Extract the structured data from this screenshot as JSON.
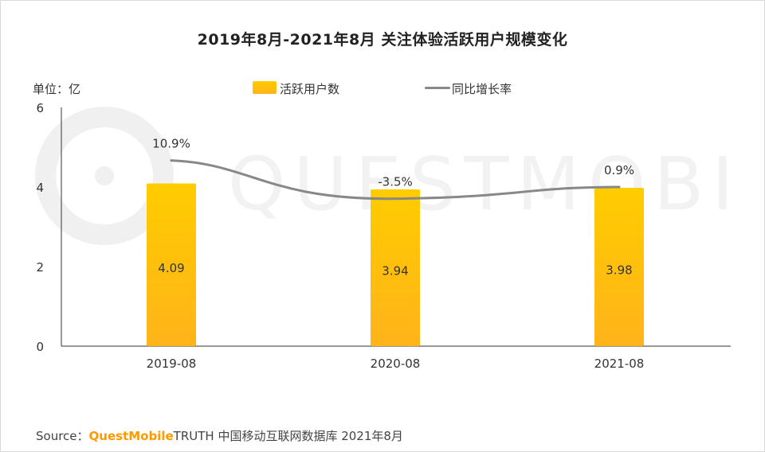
{
  "title": "2019年8月-2021年8月 关注体验活跃用户规模变化",
  "unit_label": "单位：亿",
  "watermark": "QUESTMOBILE",
  "source": {
    "prefix": "Source：",
    "brand": "QuestMobile",
    "suffix": "TRUTH 中国移动互联网数据库 2021年8月"
  },
  "colors": {
    "bar_top": "#ffcc00",
    "bar_bottom": "#ffb31a",
    "line": "#888888",
    "axis": "#333333",
    "watermark": "#f2f2f2"
  },
  "chart_data": {
    "type": "bar",
    "title": "2019年8月-2021年8月 关注体验活跃用户规模变化",
    "categories": [
      "2019-08",
      "2020-08",
      "2021-08"
    ],
    "series": [
      {
        "name": "活跃用户数",
        "type": "bar",
        "axis": "left",
        "values": [
          4.09,
          3.94,
          3.98
        ],
        "labels": [
          "4.09",
          "3.94",
          "3.98"
        ]
      },
      {
        "name": "同比增长率",
        "type": "line",
        "axis": "right-hidden",
        "values": [
          10.9,
          -3.5,
          0.9
        ],
        "labels": [
          "10.9%",
          "-3.5%",
          "0.9%"
        ]
      }
    ],
    "ylim": [
      0,
      6
    ],
    "yticks": [
      0,
      2,
      4,
      6
    ],
    "ytick_labels": [
      "0",
      "2",
      "4",
      "6"
    ],
    "ylabel": "单位：亿",
    "xlabel": "",
    "legend": "top-center",
    "grid": false
  }
}
